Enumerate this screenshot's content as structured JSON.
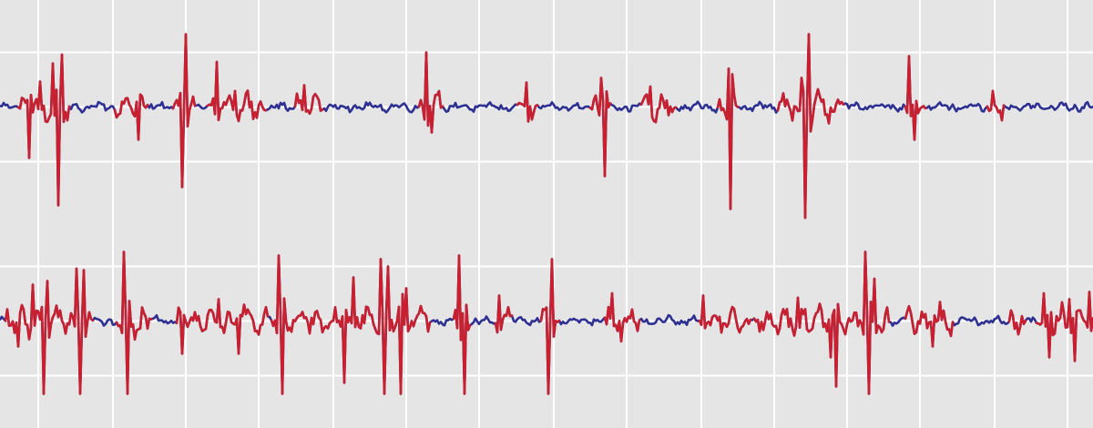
{
  "chart_data": {
    "type": "line",
    "title": "",
    "xlabel": "",
    "ylabel": "",
    "grid": true,
    "legend": "none",
    "colors": {
      "background": "#e5e5e5",
      "grid": "#ffffff",
      "baseline": "#2e3192",
      "event": "#c8202f"
    },
    "xlim": [
      0,
      1200
    ],
    "x_grid": [
      42,
      124,
      204,
      284,
      366,
      446,
      526,
      608,
      688,
      770,
      850,
      930,
      1010,
      1092,
      1172
    ],
    "panels": [
      {
        "name": "",
        "ylim": [
          -1,
          1
        ],
        "y_grid": [
          0.75,
          0.0,
          -0.75
        ],
        "baseline_color": "#2e3192",
        "event_color": "#c8202f",
        "baseline_noise": 0.045,
        "event_segments": [
          [
            22,
            75
          ],
          [
            128,
            160
          ],
          [
            192,
            212
          ],
          [
            230,
            290
          ],
          [
            325,
            352
          ],
          [
            462,
            485
          ],
          [
            570,
            588
          ],
          [
            650,
            668
          ],
          [
            705,
            740
          ],
          [
            790,
            808
          ],
          [
            855,
            925
          ],
          [
            995,
            1015
          ],
          [
            1085,
            1100
          ]
        ],
        "spikes": [
          {
            "x": 32,
            "y": -0.7
          },
          {
            "x": 44,
            "y": 0.35
          },
          {
            "x": 58,
            "y": 0.6
          },
          {
            "x": 64,
            "y": -1.35
          },
          {
            "x": 68,
            "y": 0.72
          },
          {
            "x": 152,
            "y": -0.45
          },
          {
            "x": 200,
            "y": -1.1
          },
          {
            "x": 204,
            "y": 1.0
          },
          {
            "x": 239,
            "y": 0.62
          },
          {
            "x": 258,
            "y": 0.22
          },
          {
            "x": 334,
            "y": 0.3
          },
          {
            "x": 468,
            "y": 0.75
          },
          {
            "x": 474,
            "y": -0.35
          },
          {
            "x": 578,
            "y": 0.6
          },
          {
            "x": 580,
            "y": -0.2
          },
          {
            "x": 660,
            "y": 0.4
          },
          {
            "x": 664,
            "y": -0.95
          },
          {
            "x": 714,
            "y": 0.28
          },
          {
            "x": 800,
            "y": 0.55
          },
          {
            "x": 802,
            "y": -1.4
          },
          {
            "x": 880,
            "y": 0.4
          },
          {
            "x": 884,
            "y": -1.52
          },
          {
            "x": 888,
            "y": 1.0
          },
          {
            "x": 998,
            "y": 0.7
          },
          {
            "x": 1004,
            "y": -0.45
          },
          {
            "x": 1090,
            "y": 0.22
          }
        ]
      },
      {
        "name": "",
        "ylim": [
          -1,
          1
        ],
        "y_grid": [
          0.75,
          0.0,
          -0.75
        ],
        "baseline_color": "#2e3192",
        "event_color": "#c8202f",
        "baseline_noise": 0.05,
        "event_segments": [
          [
            8,
            100
          ],
          [
            130,
            165
          ],
          [
            195,
            292
          ],
          [
            300,
            420
          ],
          [
            420,
            470
          ],
          [
            500,
            515
          ],
          [
            545,
            560
          ],
          [
            595,
            612
          ],
          [
            665,
            700
          ],
          [
            770,
            822
          ],
          [
            830,
            975
          ],
          [
            995,
            1045
          ],
          [
            1110,
            1125
          ],
          [
            1140,
            1200
          ]
        ],
        "spikes": [
          {
            "x": 20,
            "y": -0.35
          },
          {
            "x": 36,
            "y": 0.5
          },
          {
            "x": 48,
            "y": -1.0
          },
          {
            "x": 52,
            "y": 0.55
          },
          {
            "x": 84,
            "y": 0.72
          },
          {
            "x": 88,
            "y": -1.0
          },
          {
            "x": 92,
            "y": 0.7
          },
          {
            "x": 136,
            "y": 0.95
          },
          {
            "x": 140,
            "y": -1.0
          },
          {
            "x": 200,
            "y": -0.45
          },
          {
            "x": 240,
            "y": 0.3
          },
          {
            "x": 262,
            "y": -0.45
          },
          {
            "x": 306,
            "y": 0.9
          },
          {
            "x": 310,
            "y": -1.0
          },
          {
            "x": 378,
            "y": -0.85
          },
          {
            "x": 388,
            "y": 0.6
          },
          {
            "x": 418,
            "y": 0.85
          },
          {
            "x": 422,
            "y": -1.0
          },
          {
            "x": 426,
            "y": 0.75
          },
          {
            "x": 440,
            "y": -1.0
          },
          {
            "x": 446,
            "y": 0.45
          },
          {
            "x": 504,
            "y": 0.9
          },
          {
            "x": 510,
            "y": -1.0
          },
          {
            "x": 548,
            "y": 0.35
          },
          {
            "x": 602,
            "y": -1.0
          },
          {
            "x": 606,
            "y": 0.85
          },
          {
            "x": 672,
            "y": 0.38
          },
          {
            "x": 682,
            "y": -0.28
          },
          {
            "x": 772,
            "y": 0.35
          },
          {
            "x": 876,
            "y": 0.32
          },
          {
            "x": 912,
            "y": -0.5
          },
          {
            "x": 918,
            "y": -0.9
          },
          {
            "x": 950,
            "y": 0.95
          },
          {
            "x": 954,
            "y": -1.0
          },
          {
            "x": 960,
            "y": 0.58
          },
          {
            "x": 1024,
            "y": -0.35
          },
          {
            "x": 1146,
            "y": 0.38
          },
          {
            "x": 1152,
            "y": -0.5
          },
          {
            "x": 1174,
            "y": 0.3
          },
          {
            "x": 1180,
            "y": -0.55
          },
          {
            "x": 1196,
            "y": 0.4
          }
        ]
      }
    ]
  }
}
